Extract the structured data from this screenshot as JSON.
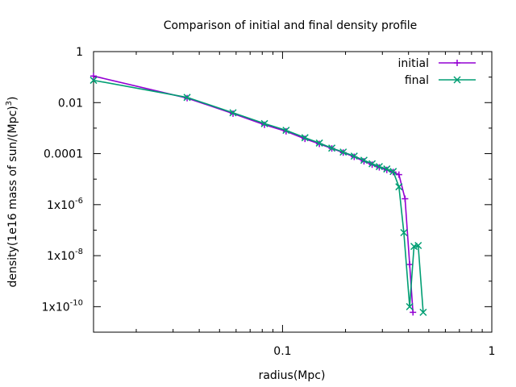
{
  "chart_data": {
    "type": "line",
    "title": "Comparison of initial and final density profile",
    "xlabel": "radius(Mpc)",
    "ylabel_parts": [
      "density(1e16 mass of sun/(Mpc)",
      "3",
      ")"
    ],
    "x_scale": "log",
    "y_scale": "log",
    "xlim": [
      0.0125,
      1
    ],
    "ylim": [
      1e-11,
      1
    ],
    "grid": false,
    "legend_position": "top-right",
    "x_ticks": [
      {
        "value": 0.1,
        "label": "0.1"
      },
      {
        "value": 1,
        "label": "1"
      }
    ],
    "y_ticks": [
      {
        "value": 1,
        "label": "1"
      },
      {
        "value": 0.01,
        "label": "0.01"
      },
      {
        "value": 0.0001,
        "label": "0.0001"
      },
      {
        "value": 1e-06,
        "label": "1x10",
        "exp": "-6"
      },
      {
        "value": 1e-08,
        "label": "1x10",
        "exp": "-8"
      },
      {
        "value": 1e-10,
        "label": "1x10",
        "exp": "-10"
      }
    ],
    "series": [
      {
        "name": "initial",
        "color": "#9400d3",
        "marker": "plus",
        "x": [
          0.0125,
          0.035,
          0.058,
          0.082,
          0.104,
          0.128,
          0.15,
          0.172,
          0.195,
          0.22,
          0.245,
          0.268,
          0.29,
          0.315,
          0.338,
          0.36,
          0.385,
          0.405,
          0.42
        ],
        "y": [
          0.11,
          0.015,
          0.0037,
          0.00135,
          0.00075,
          0.00038,
          0.00024,
          0.00016,
          0.00011,
          7.5e-05,
          5e-05,
          3.7e-05,
          2.9e-05,
          2.3e-05,
          1.9e-05,
          1.5e-05,
          1.7e-06,
          4.5e-09,
          6e-11
        ]
      },
      {
        "name": "final",
        "color": "#009e73",
        "marker": "cross",
        "x": [
          0.0125,
          0.035,
          0.058,
          0.082,
          0.104,
          0.128,
          0.15,
          0.172,
          0.195,
          0.22,
          0.245,
          0.268,
          0.29,
          0.315,
          0.338,
          0.36,
          0.38,
          0.405,
          0.425,
          0.445,
          0.47
        ],
        "y": [
          0.075,
          0.016,
          0.004,
          0.0015,
          0.00082,
          0.00042,
          0.00026,
          0.000165,
          0.000115,
          8e-05,
          5.5e-05,
          4e-05,
          3.1e-05,
          2.5e-05,
          2e-05,
          5e-06,
          8e-08,
          1e-10,
          2.3e-08,
          2.5e-08,
          6e-11
        ]
      }
    ]
  }
}
